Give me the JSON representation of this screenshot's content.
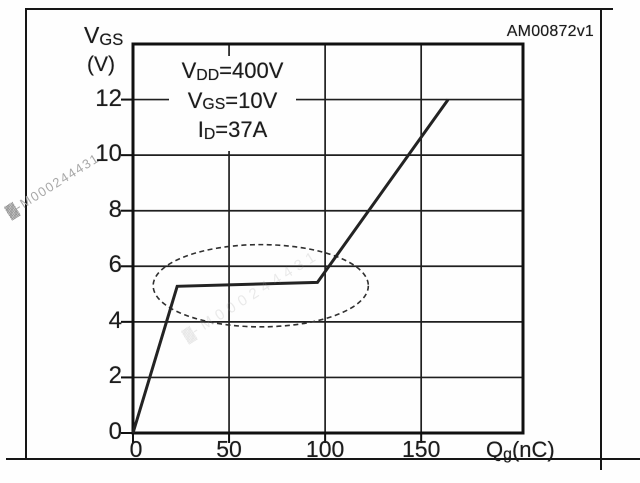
{
  "doc_id": "AM00872v1",
  "watermark": {
    "prefix": "▓",
    "code": "-M000244431"
  },
  "colors": {
    "ink": "#1c1c1c",
    "grid": "#1f1f1f",
    "frame": "#161616",
    "watermark": "#a8a8a8",
    "background": "#fefefe"
  },
  "chart_data": {
    "type": "line",
    "title": "",
    "xlabel_text": "Qg(nC)",
    "ylabel_text": "VGS (V)",
    "xlabel": {
      "sym": "Q",
      "sub": "g",
      "unit": "(nC)"
    },
    "ylabel": {
      "sym": "V",
      "sub": "GS",
      "unit": "(V)"
    },
    "xlim": [
      0,
      203
    ],
    "ylim": [
      0,
      14
    ],
    "grid": true,
    "x_ticks": {
      "labels": [
        "0",
        "50",
        "100",
        "150"
      ],
      "values": [
        0,
        50,
        100,
        150
      ]
    },
    "y_ticks": {
      "labels": [
        "12",
        "10",
        "8",
        "6",
        "4",
        "2",
        "0"
      ],
      "values": [
        12,
        10,
        8,
        6,
        4,
        2,
        0
      ]
    },
    "series": [
      {
        "name": "gate-charge-curve",
        "points": [
          [
            0,
            0
          ],
          [
            23,
            5.28
          ],
          [
            96,
            5.42
          ],
          [
            164,
            12
          ]
        ]
      }
    ],
    "conditions": [
      {
        "sym": "V",
        "sub": "DD",
        "rest": "=400V"
      },
      {
        "sym": "V",
        "sub": "GS",
        "rest": "=10V"
      },
      {
        "sym": "I",
        "sub": "D",
        "rest": "=37A"
      }
    ],
    "ellipse_annotation": {
      "cx": 66.5,
      "cy": 5.3,
      "rx": 56,
      "ry": 1.48
    }
  }
}
